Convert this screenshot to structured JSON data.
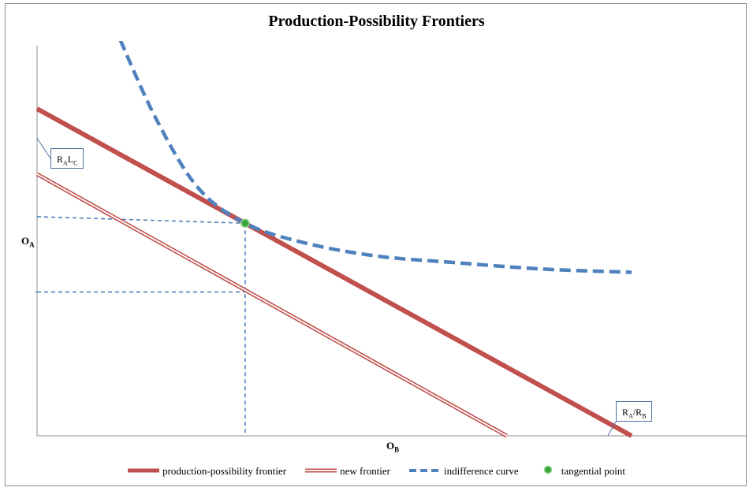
{
  "chart_data": {
    "type": "line",
    "title": "Production-Possibility Frontiers",
    "xlabel": {
      "main": "O",
      "sub": "B"
    },
    "ylabel": {
      "main": "O",
      "sub": "A"
    },
    "xlim": [
      0,
      100
    ],
    "ylim": [
      0,
      100
    ],
    "grid": false,
    "legend_position": "bottom",
    "series": [
      {
        "name": "production-possibility frontier",
        "color": "#c0504d",
        "style": "thick-solid",
        "x": [
          0,
          100
        ],
        "y": [
          100,
          0
        ]
      },
      {
        "name": "new frontier",
        "color": "#c0504d",
        "style": "double-line",
        "x": [
          0,
          79
        ],
        "y": [
          80,
          0
        ]
      },
      {
        "name": "indifference curve",
        "color": "#4f81bd",
        "style": "dashed",
        "x": [
          14,
          20,
          27,
          35,
          45,
          57,
          70,
          85,
          100
        ],
        "y": [
          121,
          97,
          76,
          65,
          59,
          55,
          53,
          51,
          50
        ]
      },
      {
        "name": "tangential point",
        "color": "#3aa63a",
        "style": "marker",
        "x": [
          35
        ],
        "y": [
          65
        ]
      }
    ],
    "reference_lines": [
      {
        "x": [
          0,
          35
        ],
        "y": [
          67,
          65
        ]
      },
      {
        "x": [
          0,
          35
        ],
        "y": [
          44,
          44
        ]
      },
      {
        "x": [
          35,
          35
        ],
        "y": [
          65,
          0
        ]
      }
    ],
    "callouts": [
      {
        "parts": [
          {
            "t": "R"
          },
          {
            "s": "A"
          },
          {
            "t": "L"
          },
          {
            "s": "C"
          }
        ],
        "target": [
          0,
          91
        ]
      },
      {
        "parts": [
          {
            "t": "R"
          },
          {
            "s": "A"
          },
          {
            "t": "/R"
          },
          {
            "s": "B"
          }
        ],
        "target": [
          96,
          0
        ]
      }
    ]
  }
}
